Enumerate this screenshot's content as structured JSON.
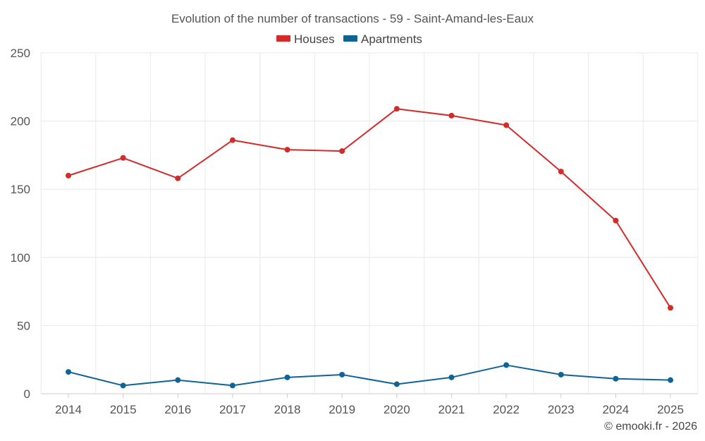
{
  "chart_data": {
    "type": "line",
    "title": "Evolution of the number of transactions - 59 - Saint-Amand-les-Eaux",
    "xlabel": "",
    "ylabel": "",
    "categories": [
      "2014",
      "2015",
      "2016",
      "2017",
      "2018",
      "2019",
      "2020",
      "2021",
      "2022",
      "2023",
      "2024",
      "2025"
    ],
    "ylim": [
      0,
      250
    ],
    "yticks": [
      0,
      50,
      100,
      150,
      200,
      250
    ],
    "grid": true,
    "legend_position": "top-center",
    "series": [
      {
        "name": "Houses",
        "color": "#d32a2a",
        "values": [
          160,
          173,
          158,
          186,
          179,
          178,
          209,
          204,
          197,
          163,
          127,
          63
        ]
      },
      {
        "name": "Apartments",
        "color": "#0e6497",
        "values": [
          16,
          6,
          10,
          6,
          12,
          14,
          7,
          12,
          21,
          14,
          11,
          10
        ]
      }
    ]
  },
  "credit": "© emooki.fr - 2026"
}
